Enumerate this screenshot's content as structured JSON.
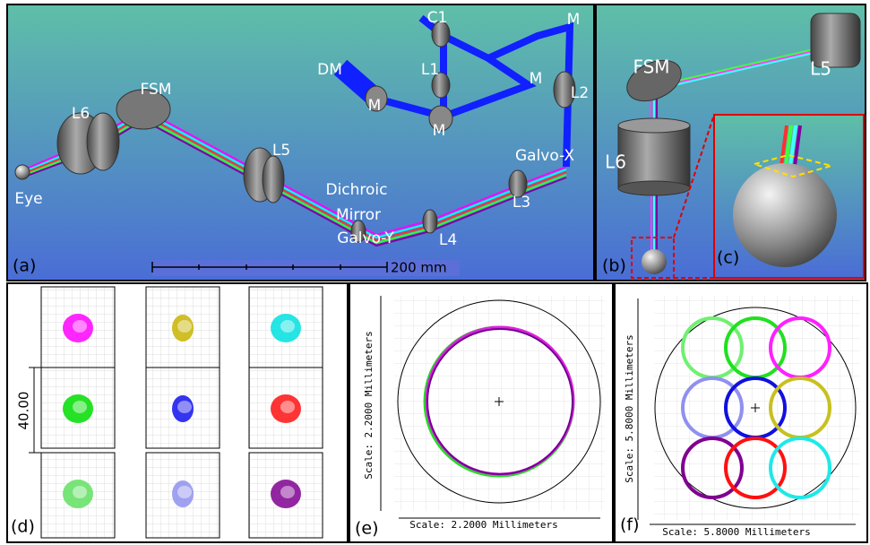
{
  "panel_a": {
    "label": "(a)",
    "scale_bar": "200 mm",
    "components": [
      "C1",
      "M",
      "DM",
      "L1",
      "M",
      "L2",
      "M",
      "M",
      "FSM",
      "L6",
      "L5",
      "Galvo-X",
      "Dichroic",
      "Mirror",
      "Eye",
      "L3",
      "L4",
      "Galvo-Y"
    ]
  },
  "panel_b": {
    "label": "(b)",
    "components": [
      "FSM",
      "L5",
      "L6"
    ]
  },
  "panel_c": {
    "label": "(c)"
  },
  "panel_d": {
    "label": "(d)",
    "scale": "40.00"
  },
  "panel_e": {
    "label": "(e)",
    "scale_x": "Scale: 2.2000 Millimeters",
    "scale_y": "Scale: 2.2000 Millimeters"
  },
  "panel_f": {
    "label": "(f)",
    "scale_x": "Scale: 5.8000 Millimeters",
    "scale_y": "Scale: 5.8000 Millimeters"
  }
}
